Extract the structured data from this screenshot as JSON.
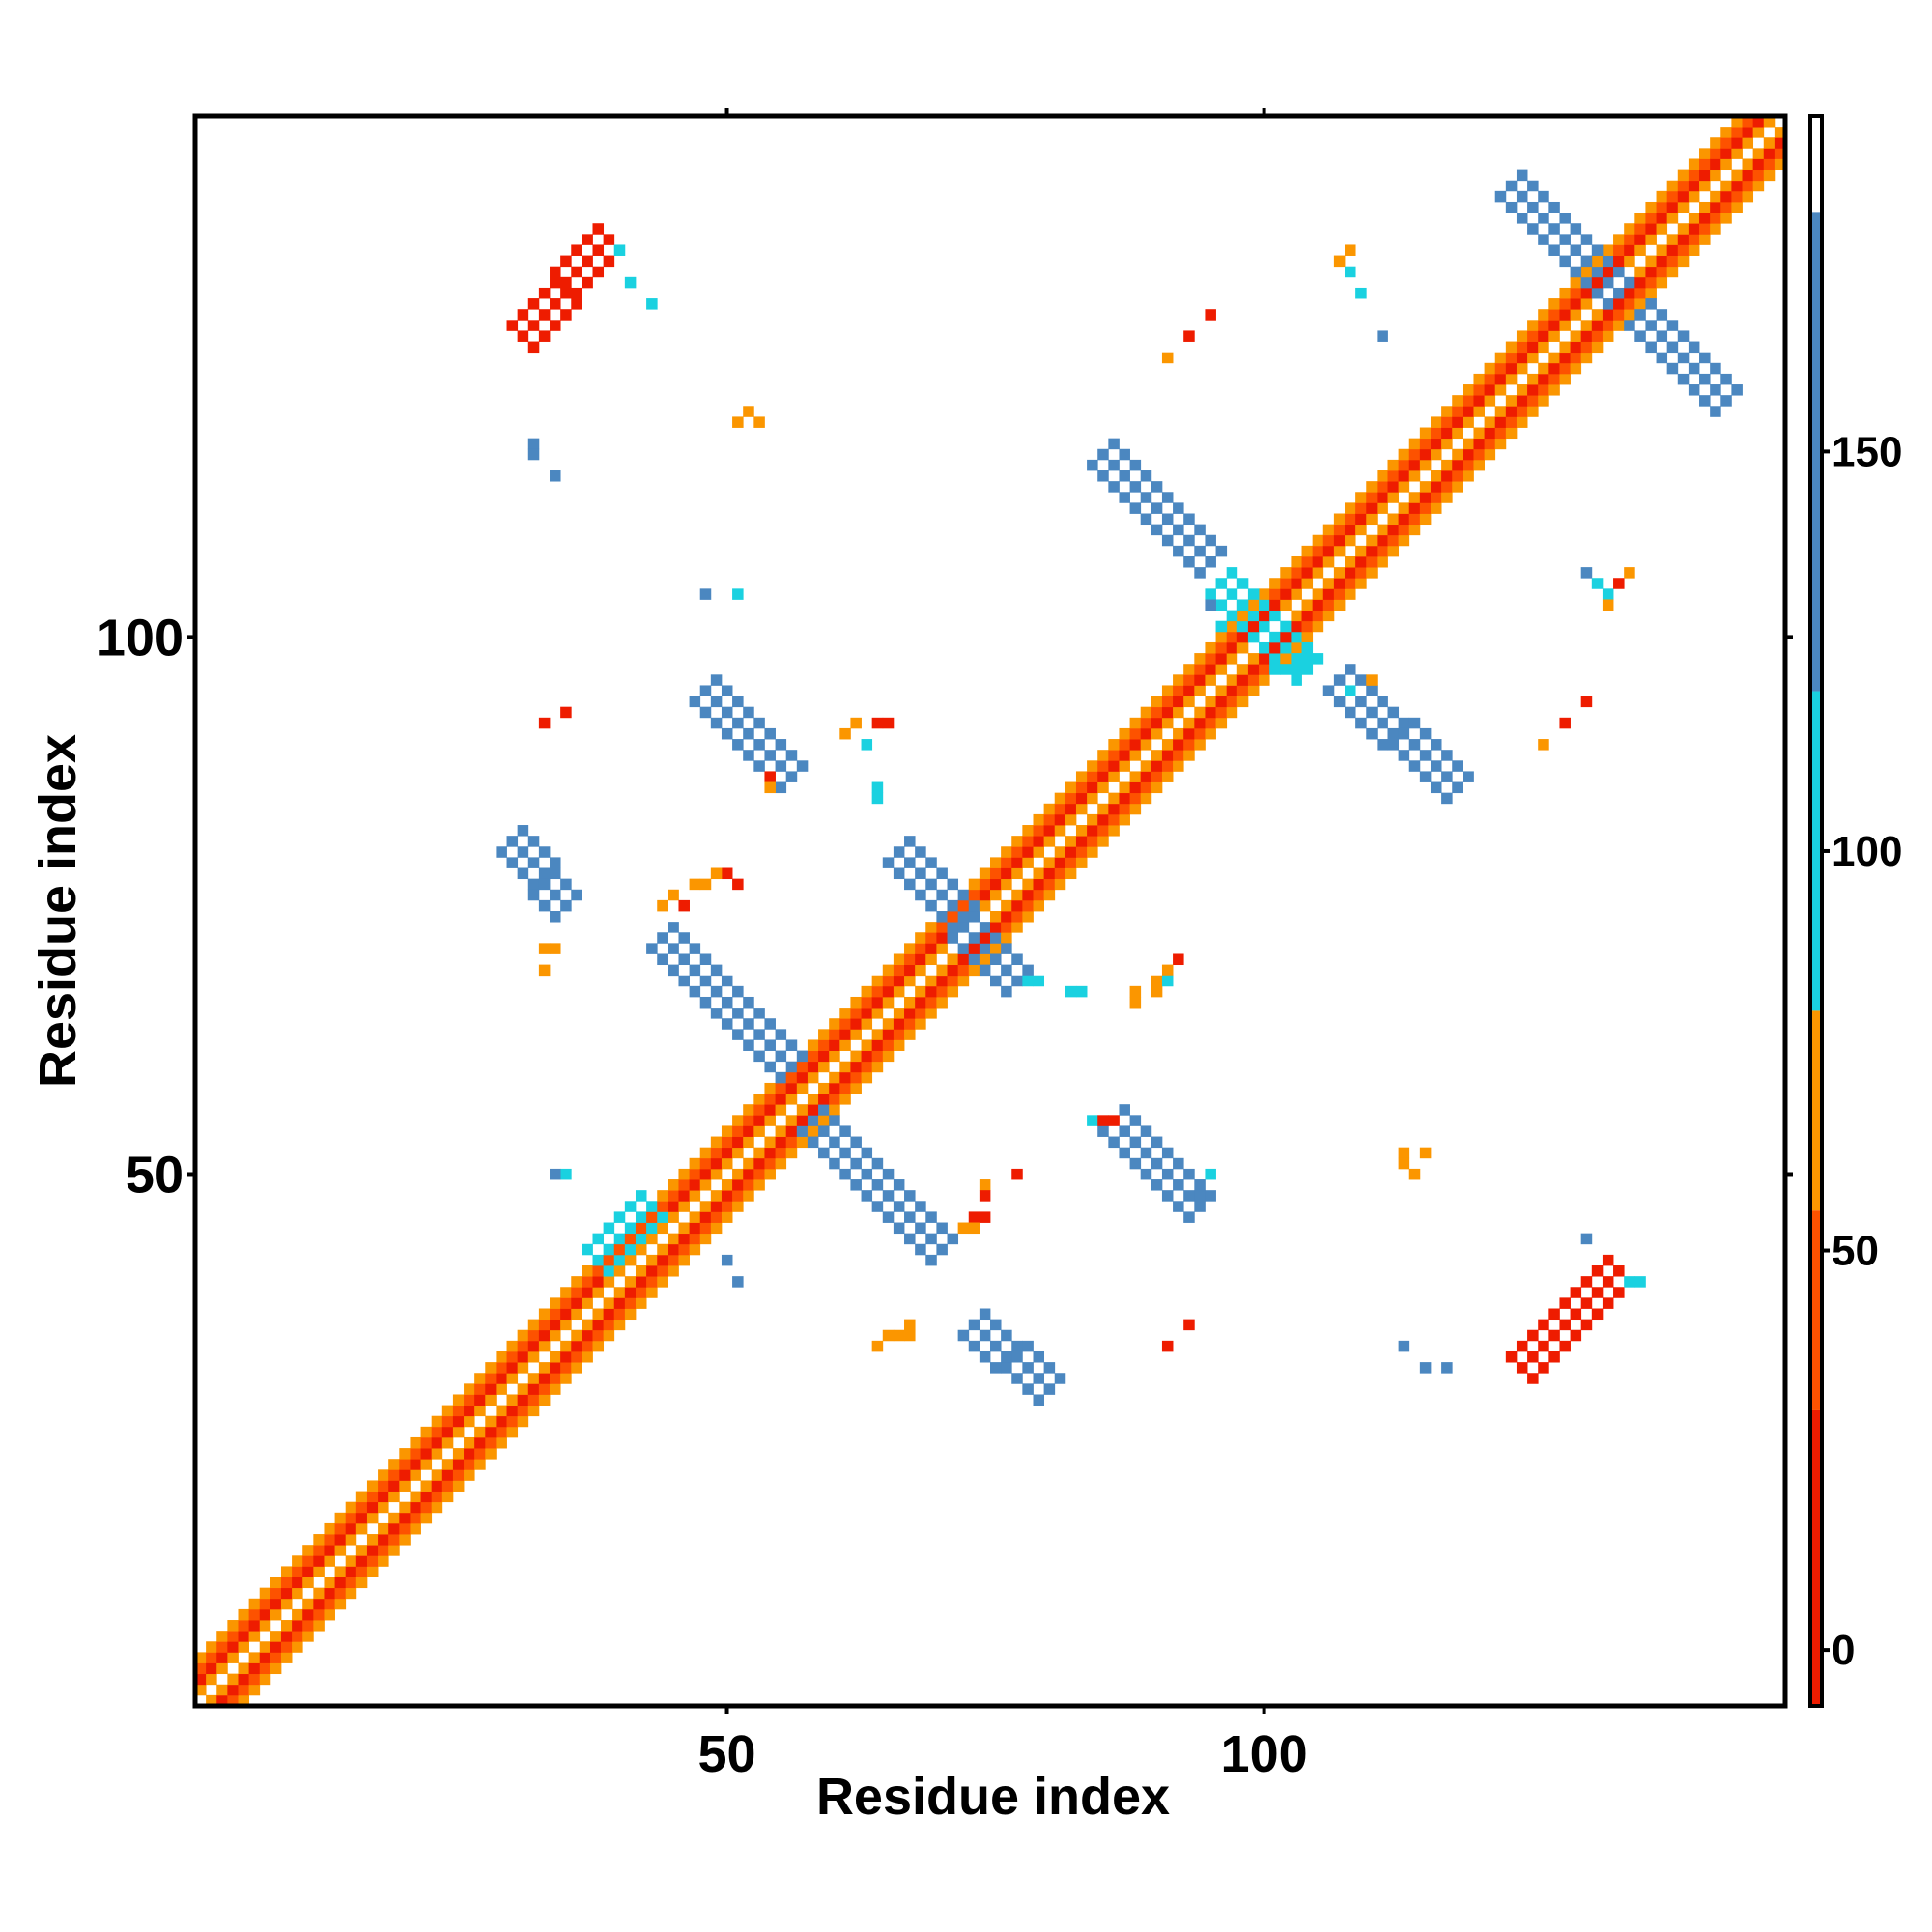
{
  "chart_data": {
    "type": "heatmap",
    "title": "",
    "xlabel": "Residue index",
    "ylabel": "Residue index",
    "xlim": [
      0.5,
      148.5
    ],
    "ylim": [
      0.5,
      148.5
    ],
    "x_ticks": [
      50,
      100
    ],
    "y_ticks": [
      50,
      100
    ],
    "x_tick_labels": [
      "50",
      "100"
    ],
    "y_tick_labels": [
      "50",
      "100"
    ],
    "colorbar": {
      "ticks": [
        0,
        50,
        100,
        150
      ],
      "tick_labels": [
        "0",
        "50",
        "100",
        "150"
      ],
      "range": [
        -7,
        192
      ],
      "bands": [
        {
          "from": -7,
          "to": 30,
          "color": "#ee1c00"
        },
        {
          "from": 30,
          "to": 55,
          "color": "#fd5200"
        },
        {
          "from": 55,
          "to": 80,
          "color": "#fb9600"
        },
        {
          "from": 80,
          "to": 120,
          "color": "#1ad1e0"
        },
        {
          "from": 120,
          "to": 180,
          "color": "#4b87c0"
        },
        {
          "from": 180,
          "to": 192,
          "color": "#ffffff"
        }
      ]
    },
    "legend": "colorbar-right",
    "grid": false,
    "cell_colors": {
      "red": "#ee1c00",
      "orange_red": "#fd5200",
      "orange": "#fb9600",
      "cyan": "#1ad1e0",
      "blue": "#4b87c0"
    },
    "diagonal": {
      "from": 1,
      "to": 148,
      "pattern_offsets_value": [
        {
          "offset": 0,
          "value": 182
        },
        {
          "offset": 1,
          "value": 62
        },
        {
          "offset": 2,
          "value": 18
        },
        {
          "offset": 3,
          "value": 45
        },
        {
          "offset": 4,
          "value": 70
        }
      ]
    },
    "strands": [
      {
        "x1": 31,
        "y1": 128,
        "x2": 39,
        "y2": 137,
        "width": 3,
        "value": 10
      },
      {
        "x1": 124,
        "y1": 32,
        "x2": 133,
        "y2": 41,
        "width": 3,
        "value": 10
      },
      {
        "x1": 38,
        "y1": 42,
        "x2": 43,
        "y2": 47,
        "width": 2,
        "value": 100
      },
      {
        "x1": 44,
        "y1": 72,
        "x2": 56,
        "y2": 60,
        "width": 3,
        "value": 140
      },
      {
        "x1": 58,
        "y1": 55,
        "x2": 70,
        "y2": 43,
        "width": 3,
        "value": 140
      },
      {
        "x1": 66,
        "y1": 80,
        "x2": 77,
        "y2": 68,
        "width": 3,
        "value": 140
      },
      {
        "x1": 85,
        "y1": 117,
        "x2": 95,
        "y2": 107,
        "width": 3,
        "value": 140
      },
      {
        "x1": 107,
        "y1": 96,
        "x2": 118,
        "y2": 86,
        "width": 3,
        "value": 140
      },
      {
        "x1": 123,
        "y1": 142,
        "x2": 133,
        "y2": 132,
        "width": 3,
        "value": 140
      },
      {
        "x1": 135,
        "y1": 130,
        "x2": 143,
        "y2": 122,
        "width": 3,
        "value": 140
      },
      {
        "x1": 48,
        "y1": 95,
        "x2": 56,
        "y2": 87,
        "width": 3,
        "value": 140
      },
      {
        "x1": 86,
        "y1": 55,
        "x2": 94,
        "y2": 47,
        "width": 3,
        "value": 140
      },
      {
        "x1": 73,
        "y1": 36,
        "x2": 80,
        "y2": 30,
        "width": 3,
        "value": 140
      },
      {
        "x1": 30,
        "y1": 81,
        "x2": 35,
        "y2": 75,
        "width": 2,
        "value": 140
      },
      {
        "x1": 96,
        "y1": 105,
        "x2": 104,
        "y2": 97,
        "width": 3,
        "value": 100
      }
    ],
    "points": [
      [
        40,
        136,
        100
      ],
      [
        41,
        133,
        100
      ],
      [
        43,
        131,
        100
      ],
      [
        32,
        118,
        140
      ],
      [
        32,
        117,
        140
      ],
      [
        34,
        115,
        140
      ],
      [
        51,
        120,
        60
      ],
      [
        52,
        121,
        60
      ],
      [
        53,
        120,
        60
      ],
      [
        48,
        104,
        140
      ],
      [
        51,
        104,
        100
      ],
      [
        33,
        92,
        20
      ],
      [
        35,
        93,
        20
      ],
      [
        61,
        91,
        60
      ],
      [
        62,
        92,
        60
      ],
      [
        64,
        92,
        20
      ],
      [
        65,
        92,
        10
      ],
      [
        63,
        90,
        100
      ],
      [
        54,
        87,
        20
      ],
      [
        54,
        86,
        60
      ],
      [
        64,
        85,
        100
      ],
      [
        64,
        86,
        100
      ],
      [
        50,
        78,
        10
      ],
      [
        47,
        77,
        60
      ],
      [
        48,
        77,
        60
      ],
      [
        49,
        78,
        60
      ],
      [
        51,
        77,
        10
      ],
      [
        44,
        75,
        60
      ],
      [
        45,
        76,
        60
      ],
      [
        46,
        75,
        10
      ],
      [
        34,
        71,
        60
      ],
      [
        33,
        71,
        60
      ],
      [
        33,
        69,
        60
      ],
      [
        92,
        70,
        20
      ],
      [
        91,
        69,
        60
      ],
      [
        90,
        68,
        60
      ],
      [
        90,
        67,
        60
      ],
      [
        88,
        67,
        60
      ],
      [
        88,
        66,
        60
      ],
      [
        91,
        68,
        100
      ],
      [
        82,
        67,
        100
      ],
      [
        83,
        67,
        100
      ],
      [
        79,
        68,
        100
      ],
      [
        78,
        68,
        100
      ],
      [
        84,
        55,
        100
      ],
      [
        85,
        55,
        20
      ],
      [
        86,
        55,
        20
      ],
      [
        95,
        50,
        100
      ],
      [
        94,
        48,
        140
      ],
      [
        74,
        49,
        60
      ],
      [
        74,
        48,
        20
      ],
      [
        73,
        46,
        20
      ],
      [
        72,
        45,
        60
      ],
      [
        73,
        45,
        60
      ],
      [
        74,
        46,
        20
      ],
      [
        77,
        50,
        20
      ],
      [
        35,
        50,
        100
      ],
      [
        34,
        50,
        140
      ],
      [
        50,
        42,
        140
      ],
      [
        51,
        40,
        140
      ],
      [
        66,
        35,
        60
      ],
      [
        65,
        35,
        60
      ],
      [
        67,
        36,
        60
      ],
      [
        67,
        35,
        60
      ],
      [
        64,
        34,
        60
      ],
      [
        91,
        34,
        20
      ],
      [
        93,
        36,
        20
      ],
      [
        114,
        50,
        60
      ],
      [
        115,
        52,
        60
      ],
      [
        113,
        52,
        60
      ],
      [
        113,
        51,
        60
      ],
      [
        130,
        44,
        140
      ],
      [
        134,
        40,
        100
      ],
      [
        135,
        40,
        100
      ],
      [
        113,
        34,
        140
      ],
      [
        115,
        32,
        140
      ],
      [
        117,
        32,
        140
      ],
      [
        108,
        136,
        60
      ],
      [
        107,
        135,
        60
      ],
      [
        108,
        134,
        100
      ],
      [
        109,
        132,
        100
      ],
      [
        111,
        128,
        140
      ],
      [
        95,
        130,
        20
      ],
      [
        93,
        128,
        20
      ],
      [
        91,
        126,
        60
      ],
      [
        130,
        106,
        140
      ],
      [
        132,
        104,
        100
      ],
      [
        133,
        105,
        20
      ],
      [
        134,
        106,
        60
      ],
      [
        131,
        105,
        100
      ],
      [
        132,
        103,
        60
      ],
      [
        130,
        94,
        20
      ],
      [
        128,
        92,
        20
      ],
      [
        126,
        90,
        60
      ],
      [
        104,
        98,
        100
      ],
      [
        105,
        98,
        100
      ],
      [
        103,
        97,
        100
      ],
      [
        101,
        97,
        100
      ],
      [
        95,
        103,
        140
      ],
      [
        96,
        101,
        100
      ],
      [
        108,
        95,
        100
      ],
      [
        110,
        96,
        60
      ]
    ]
  }
}
